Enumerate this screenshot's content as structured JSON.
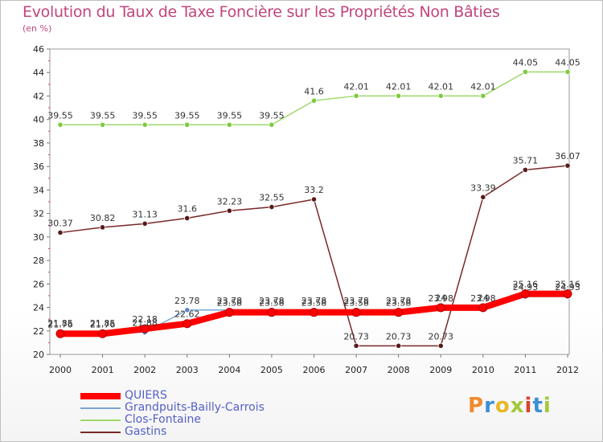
{
  "header": {
    "title": "Evolution du Taux de Taxe Foncière sur les Propriétés Non Bâties",
    "subtitle": "(en %)"
  },
  "logo": {
    "text": "Proxiti",
    "colors": [
      "#f18a2c",
      "#3d8fd6",
      "#e9b72b",
      "#a3c93a",
      "#d8432f",
      "#3d8fd6",
      "#a3c93a"
    ]
  },
  "chart_data": {
    "type": "line",
    "title": "Evolution du Taux de Taxe Foncière sur les Propriétés Non Bâties",
    "ylabel": "(en %)",
    "xlabel": "",
    "ylim": [
      20,
      46
    ],
    "yticks": [
      20,
      22,
      24,
      26,
      28,
      30,
      32,
      34,
      36,
      38,
      40,
      42,
      44,
      46
    ],
    "grid": false,
    "legend_position": "bottom-left",
    "categories": [
      "2000",
      "2001",
      "2002",
      "2003",
      "2004",
      "2005",
      "2006",
      "2007",
      "2008",
      "2009",
      "2010",
      "2011",
      "2012"
    ],
    "series": [
      {
        "name": "QUIERS",
        "color": "#ff0000",
        "values": [
          21.76,
          21.76,
          22.18,
          22.62,
          23.58,
          23.58,
          23.58,
          23.58,
          23.58,
          23.98,
          23.98,
          25.16,
          25.16
        ],
        "labels": [
          "21.76",
          "21.76",
          "22.18",
          "22.62",
          "23.58",
          "23.58",
          "23.58",
          "23.58",
          "23.58",
          "23.98",
          "23.98",
          "25.16",
          "25.16"
        ]
      },
      {
        "name": "Grandpuits-Bailly-Carrois",
        "color": "#7aa6cf",
        "values": [
          21.85,
          21.85,
          21.88,
          23.78,
          23.78,
          23.78,
          23.78,
          23.78,
          23.78,
          24.0,
          24.0,
          24.93,
          24.93
        ],
        "labels": [
          "21.85",
          "21.85",
          "21.88",
          "23.78",
          "23.78",
          "23.78",
          "23.78",
          "23.78",
          "23.78",
          "24",
          "24",
          "24.93",
          "24.93"
        ]
      },
      {
        "name": "Clos-Fontaine",
        "color": "#9ed86a",
        "values": [
          39.55,
          39.55,
          39.55,
          39.55,
          39.55,
          39.55,
          41.6,
          42.01,
          42.01,
          42.01,
          42.01,
          44.05,
          44.05
        ],
        "labels": [
          "39.55",
          "39.55",
          "39.55",
          "39.55",
          "39.55",
          "39.55",
          "41.6",
          "42.01",
          "42.01",
          "42.01",
          "42.01",
          "44.05",
          "44.05"
        ]
      },
      {
        "name": "Gastins",
        "color": "#7a2828",
        "values": [
          30.37,
          30.82,
          31.13,
          31.6,
          32.23,
          32.55,
          33.2,
          20.73,
          20.73,
          20.73,
          33.39,
          35.71,
          36.07
        ],
        "labels": [
          "30.37",
          "30.82",
          "31.13",
          "31.6",
          "32.23",
          "32.55",
          "33.2",
          "20.73",
          "20.73",
          "20.73",
          "33.39",
          "35.71",
          "36.07"
        ]
      }
    ]
  }
}
